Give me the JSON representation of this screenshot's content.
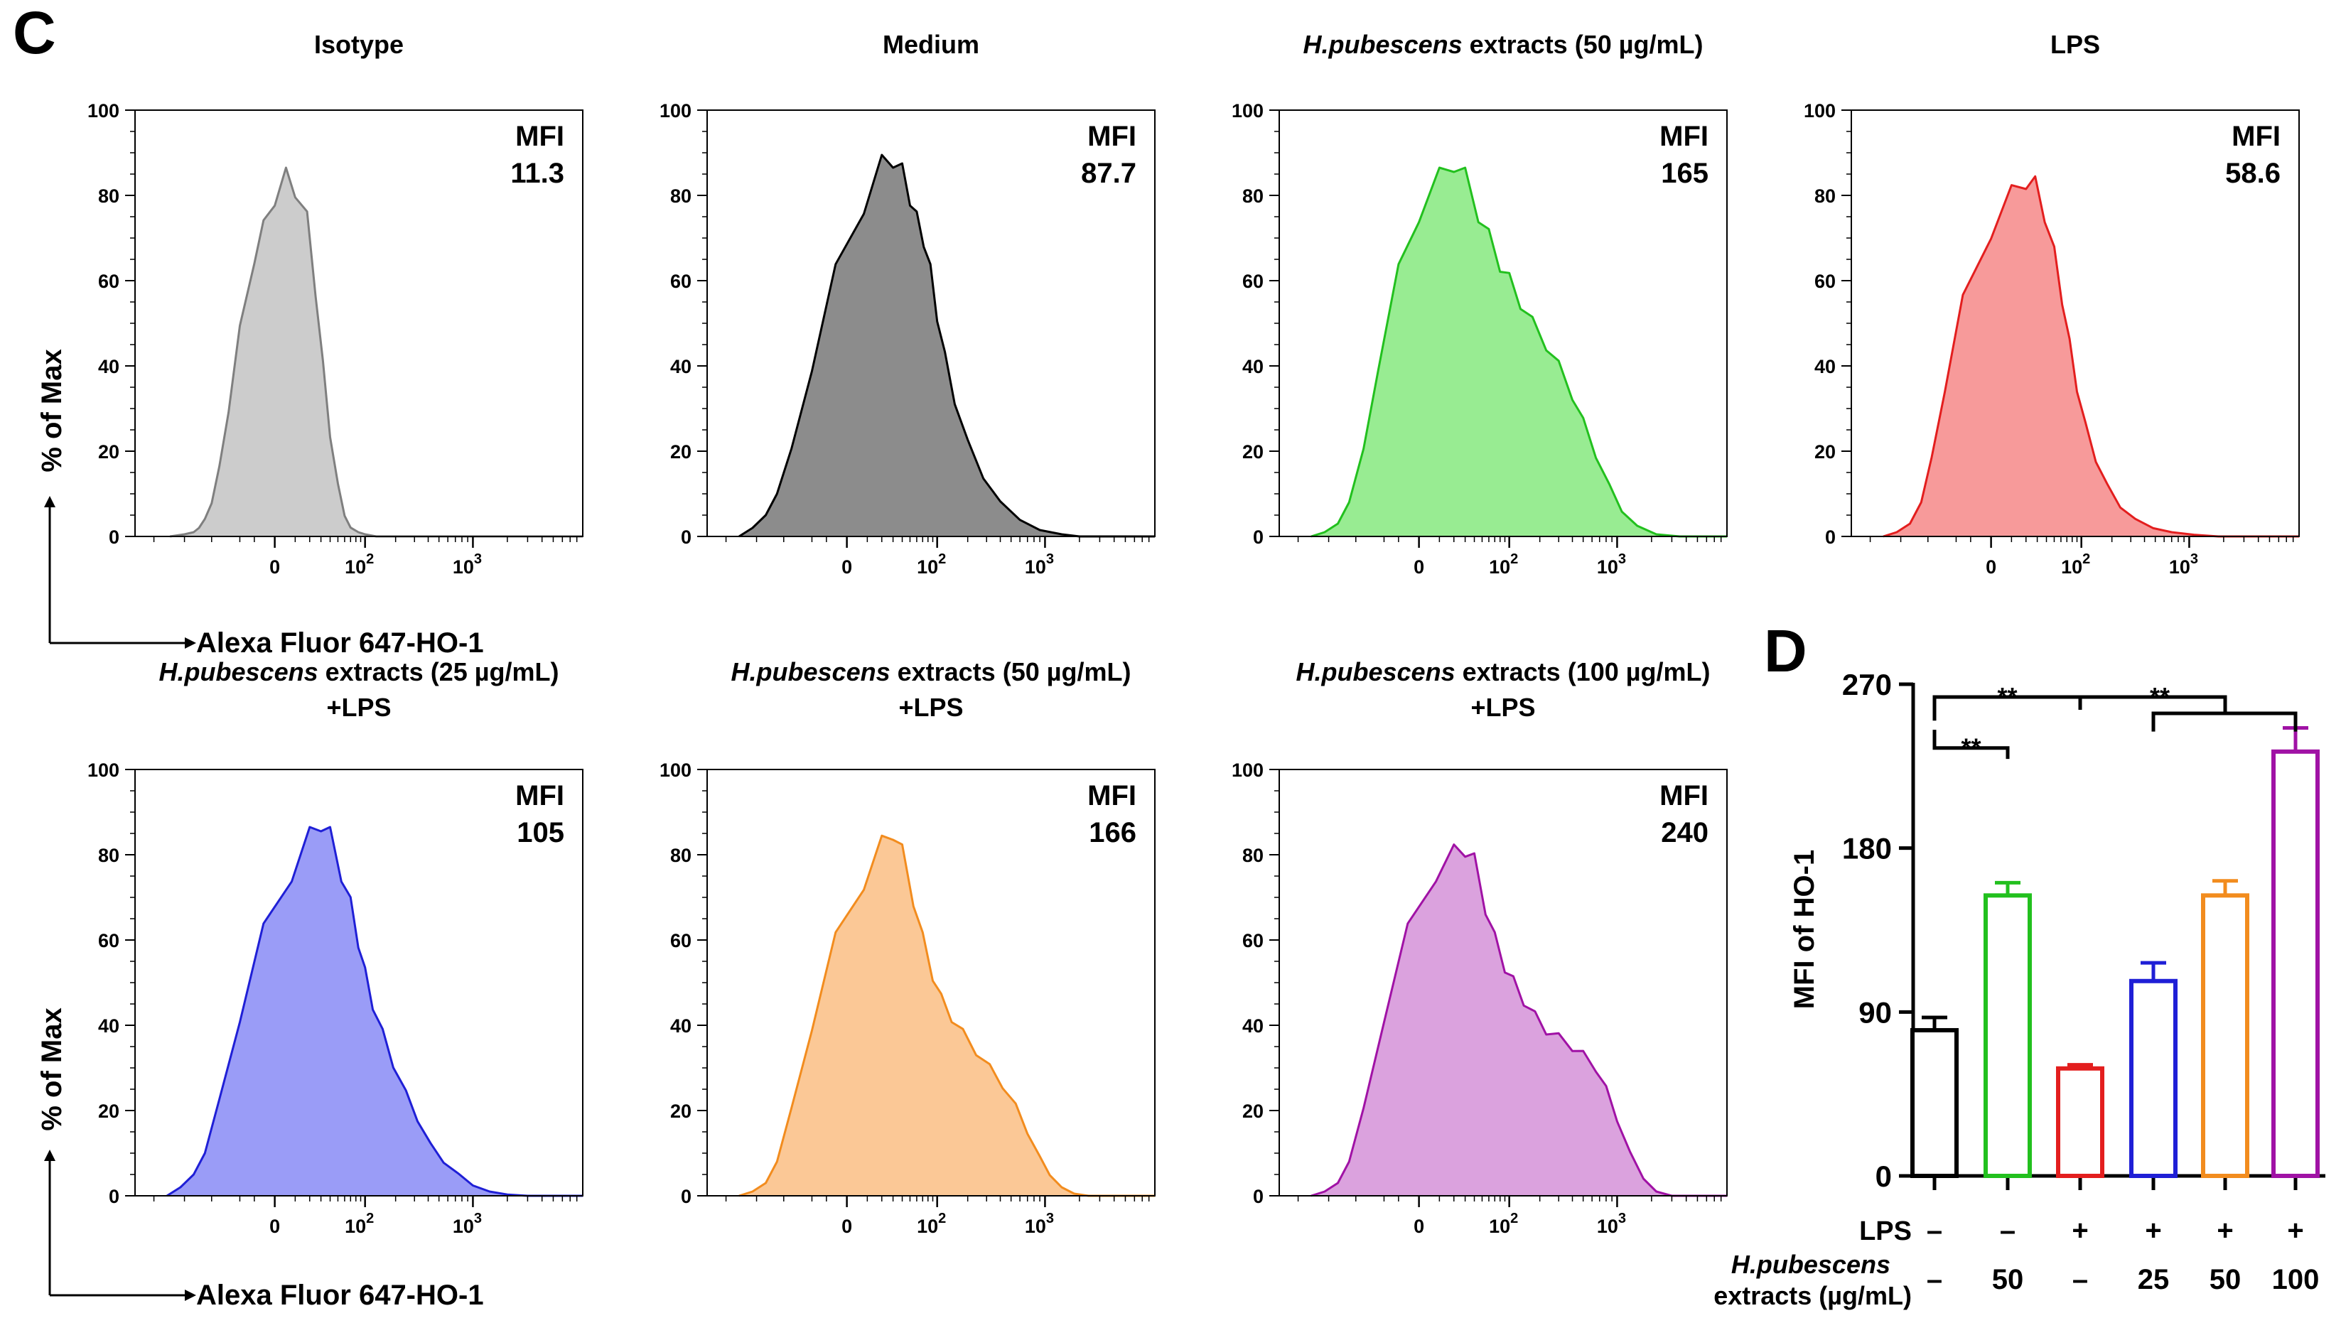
{
  "panel_labels": {
    "c": "C",
    "d": "D"
  },
  "shared": {
    "y_axis_label": "% of Max",
    "x_axis_label": "Alexa Fluor 647-HO-1",
    "mfi_label": "MFI",
    "y_ticks": [
      "0",
      "20",
      "40",
      "60",
      "80",
      "100"
    ],
    "x_tick_zero": "0",
    "x_tick_base": "10",
    "x_tick_exp2": "2",
    "x_tick_exp3": "3"
  },
  "chart_data": [
    {
      "type": "area",
      "id": "isotype",
      "title": {
        "em": "",
        "rest": "Isotype"
      },
      "subtitle": "",
      "mfi": "11.3",
      "stroke": "#7f7f7f",
      "fill": "#cccccc",
      "ylim": [
        0,
        100
      ],
      "xlim": [
        -300,
        9000
      ],
      "x": [
        -140,
        -100,
        -80,
        -70,
        -60,
        -50,
        -40,
        -30,
        -20,
        -10,
        -5,
        0,
        5,
        10,
        18,
        25,
        32,
        40,
        50,
        60,
        70,
        85,
        100,
        130
      ],
      "y": [
        0,
        0.5,
        1,
        2,
        4,
        8,
        16,
        30,
        48,
        66,
        72,
        80,
        84,
        82,
        74,
        58,
        40,
        24,
        12,
        5,
        2,
        1,
        0.5,
        0
      ]
    },
    {
      "type": "area",
      "id": "medium",
      "title": {
        "em": "",
        "rest": "Medium"
      },
      "subtitle": "",
      "mfi": "87.7",
      "stroke": "#000000",
      "fill": "#8c8c8c",
      "ylim": [
        0,
        100
      ],
      "xlim": [
        -300,
        9000
      ],
      "x": [
        -150,
        -110,
        -80,
        -60,
        -40,
        -20,
        -5,
        8,
        20,
        30,
        40,
        50,
        60,
        72,
        85,
        100,
        120,
        150,
        200,
        280,
        400,
        600,
        900,
        1400,
        2000
      ],
      "y": [
        0,
        2,
        5,
        10,
        20,
        40,
        62,
        78,
        87,
        89,
        85,
        80,
        74,
        70,
        62,
        52,
        42,
        32,
        22,
        14,
        8,
        4,
        1.5,
        0.5,
        0
      ]
    },
    {
      "type": "area",
      "id": "hp50",
      "title": {
        "em": "H.pubescens",
        "rest": " extracts (50 µg/mL)"
      },
      "subtitle": "",
      "mfi": "165",
      "stroke": "#22c01e",
      "fill": "#98ec92",
      "ylim": [
        0,
        100
      ],
      "xlim": [
        -300,
        9000
      ],
      "x": [
        -150,
        -110,
        -80,
        -60,
        -40,
        -25,
        -10,
        0,
        10,
        20,
        30,
        45,
        60,
        80,
        100,
        130,
        170,
        230,
        300,
        400,
        500,
        650,
        850,
        1100,
        1500,
        2200,
        3500
      ],
      "y": [
        0,
        1,
        3,
        8,
        20,
        40,
        62,
        76,
        84,
        88,
        84,
        76,
        70,
        64,
        60,
        55,
        50,
        45,
        40,
        33,
        27,
        19,
        12,
        6,
        2.5,
        0.5,
        0
      ]
    },
    {
      "type": "area",
      "id": "lps",
      "title": {
        "em": "",
        "rest": "LPS"
      },
      "subtitle": "",
      "mfi": "58.6",
      "stroke": "#e31e1e",
      "fill": "#f79a9a",
      "ylim": [
        0,
        100
      ],
      "xlim": [
        -300,
        9000
      ],
      "x": [
        -150,
        -110,
        -80,
        -60,
        -45,
        -30,
        -15,
        0,
        10,
        20,
        28,
        38,
        50,
        62,
        75,
        90,
        110,
        140,
        180,
        240,
        330,
        480,
        700,
        1100,
        1800
      ],
      "y": [
        0,
        1,
        3,
        8,
        18,
        35,
        55,
        72,
        80,
        84,
        82,
        76,
        66,
        56,
        45,
        35,
        26,
        18,
        12,
        7,
        4,
        2,
        1,
        0.4,
        0
      ]
    },
    {
      "type": "area",
      "id": "hp25_lps",
      "title": {
        "em": "H.pubescens",
        "rest": " extracts (25 µg/mL)"
      },
      "subtitle": "+LPS",
      "mfi": "105",
      "stroke": "#1f1fd6",
      "fill": "#9a9cf7",
      "ylim": [
        0,
        100
      ],
      "xlim": [
        -300,
        9000
      ],
      "x": [
        -150,
        -110,
        -80,
        -60,
        -40,
        -20,
        -5,
        8,
        20,
        30,
        40,
        55,
        70,
        85,
        100,
        120,
        150,
        190,
        250,
        320,
        420,
        550,
        750,
        1000,
        1400,
        2000,
        3000
      ],
      "y": [
        0,
        2,
        5,
        10,
        22,
        42,
        62,
        76,
        84,
        88,
        84,
        76,
        68,
        60,
        52,
        45,
        38,
        31,
        24,
        18,
        12,
        8,
        5,
        2.5,
        1,
        0.3,
        0
      ]
    },
    {
      "type": "area",
      "id": "hp50_lps",
      "title": {
        "em": "H.pubescens",
        "rest": " extracts (50 µg/mL)"
      },
      "subtitle": "+LPS",
      "mfi": "166",
      "stroke": "#f28c1e",
      "fill": "#fbc896",
      "ylim": [
        0,
        100
      ],
      "xlim": [
        -300,
        9000
      ],
      "x": [
        -150,
        -110,
        -80,
        -60,
        -40,
        -20,
        -5,
        8,
        20,
        30,
        40,
        55,
        70,
        90,
        110,
        140,
        180,
        240,
        320,
        420,
        550,
        700,
        900,
        1100,
        1400,
        1800,
        2400
      ],
      "y": [
        0,
        1,
        3,
        8,
        20,
        40,
        60,
        74,
        82,
        86,
        80,
        70,
        60,
        52,
        46,
        42,
        38,
        34,
        30,
        26,
        21,
        15,
        9,
        5,
        2,
        0.5,
        0
      ]
    },
    {
      "type": "area",
      "id": "hp100_lps",
      "title": {
        "em": "H.pubescens",
        "rest": " extracts (100 µg/mL)"
      },
      "subtitle": "+LPS",
      "mfi": "240",
      "stroke": "#a012a5",
      "fill": "#dba2de",
      "ylim": [
        0,
        100
      ],
      "xlim": [
        -300,
        9000
      ],
      "x": [
        -150,
        -110,
        -80,
        -60,
        -40,
        -20,
        -5,
        8,
        20,
        30,
        40,
        55,
        70,
        90,
        110,
        140,
        180,
        230,
        300,
        400,
        500,
        650,
        800,
        1000,
        1300,
        1700,
        2200,
        3000
      ],
      "y": [
        0,
        1,
        3,
        8,
        20,
        42,
        62,
        76,
        80,
        82,
        78,
        68,
        60,
        54,
        50,
        46,
        42,
        39,
        37,
        35,
        33,
        30,
        25,
        18,
        10,
        4,
        1,
        0
      ]
    },
    {
      "type": "bar",
      "id": "mfi_bars",
      "ylabel": "MFI of HO-1",
      "ylim": [
        0,
        270
      ],
      "yticks": [
        "0",
        "90",
        "180",
        "270"
      ],
      "values": [
        80,
        154,
        59,
        107,
        154,
        233
      ],
      "errors": [
        7,
        7,
        2,
        10,
        8,
        13
      ],
      "colors": [
        "#000000",
        "#22c01e",
        "#e31e1e",
        "#1f1fd6",
        "#f28c1e",
        "#a012a5"
      ],
      "row1_label": "LPS",
      "row1": [
        "–",
        "–",
        "+",
        "+",
        "+",
        "+"
      ],
      "row2_label_em": "H.pubescens",
      "row2_label_rest": "extracts (µg/mL)",
      "row2": [
        "–",
        "50",
        "–",
        "25",
        "50",
        "100"
      ],
      "significance": "**"
    }
  ]
}
